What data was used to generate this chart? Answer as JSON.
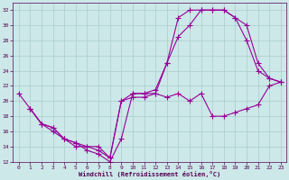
{
  "xlabel": "Windchill (Refroidissement éolien,°C)",
  "bg_color": "#cce8e8",
  "grid_color": "#aacccc",
  "line_color": "#990099",
  "xlim": [
    -0.5,
    23.5
  ],
  "ylim": [
    12,
    33
  ],
  "yticks": [
    12,
    14,
    16,
    18,
    20,
    22,
    24,
    26,
    28,
    30,
    32
  ],
  "xticks": [
    0,
    1,
    2,
    3,
    4,
    5,
    6,
    7,
    8,
    9,
    10,
    11,
    12,
    13,
    14,
    15,
    16,
    17,
    18,
    19,
    20,
    21,
    22,
    23
  ],
  "line1_x": [
    0,
    1,
    2,
    3,
    4,
    5,
    6,
    7,
    8,
    9,
    10,
    11,
    12,
    13,
    14,
    15,
    16,
    17,
    18,
    19,
    20,
    21,
    22,
    23
  ],
  "line1_y": [
    21,
    19,
    17,
    16,
    15,
    14.5,
    13.5,
    13,
    12,
    15,
    21,
    21,
    21.5,
    25,
    31,
    32,
    32,
    32,
    32,
    31,
    30,
    25,
    23,
    22.5
  ],
  "line2_x": [
    1,
    2,
    3,
    4,
    5,
    6,
    7,
    8,
    9,
    10,
    11,
    12,
    13,
    14,
    15,
    16,
    17,
    18,
    19,
    20,
    21,
    22,
    23
  ],
  "line2_y": [
    19,
    17,
    16.5,
    15,
    14.5,
    14,
    13.5,
    12.5,
    20,
    21,
    21,
    21,
    25,
    28.5,
    30,
    32,
    32,
    32,
    31,
    28,
    24,
    23,
    22.5
  ],
  "line3_x": [
    1,
    2,
    3,
    4,
    5,
    6,
    7,
    8,
    9,
    10,
    11,
    12,
    13,
    14,
    15,
    16,
    17,
    18,
    19,
    20,
    21,
    22,
    23
  ],
  "line3_y": [
    19,
    17,
    16.5,
    15,
    14,
    14,
    14,
    12.5,
    20,
    20.5,
    20.5,
    21,
    20.5,
    21,
    20,
    21,
    18,
    18,
    18.5,
    19,
    19.5,
    22,
    22.5
  ]
}
